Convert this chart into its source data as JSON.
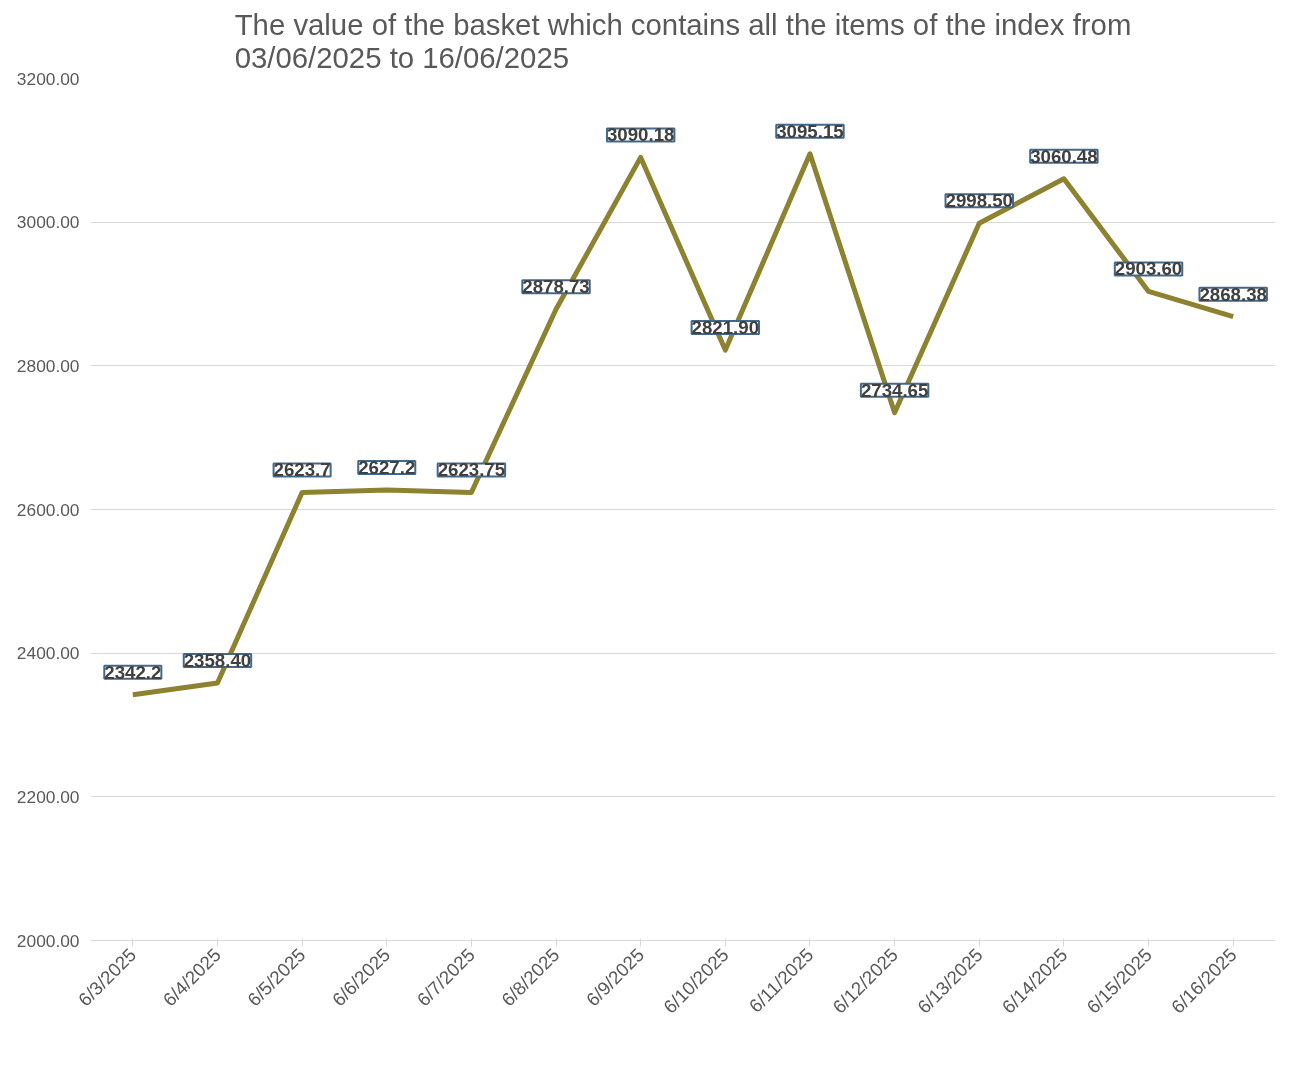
{
  "chart_data": {
    "type": "line",
    "title": "The value of the basket which contains all the items of the index from\n03/06/2025 to 16/06/2025",
    "categories": [
      "6/3/2025",
      "6/4/2025",
      "6/5/2025",
      "6/6/2025",
      "6/7/2025",
      "6/8/2025",
      "6/9/2025",
      "6/10/2025",
      "6/11/2025",
      "6/12/2025",
      "6/13/2025",
      "6/14/2025",
      "6/15/2025",
      "6/16/2025"
    ],
    "series": [
      {
        "color": "#8c8230",
        "values": [
          2342.2,
          2358.4,
          2623.7,
          2627.2,
          2623.75,
          2878.73,
          3090.18,
          2821.9,
          3095.15,
          2734.65,
          2998.5,
          3060.48,
          2903.6,
          2868.38
        ],
        "value_labels": [
          "2342.2",
          "2358.40",
          "2623.7",
          "2627.2",
          "2623.75",
          "2878.73",
          "3090.18",
          "2821.90",
          "3095.15",
          "2734.65",
          "2998.50",
          "3060.48",
          "2903.60",
          "2868.38"
        ]
      }
    ],
    "ylim": [
      2000,
      3200
    ],
    "yticks": [
      {
        "value": 2000,
        "label": "2000.00"
      },
      {
        "value": 2200,
        "label": "2200.00"
      },
      {
        "value": 2400,
        "label": "2400.00"
      },
      {
        "value": 2600,
        "label": "2600.00"
      },
      {
        "value": 2800,
        "label": "2800.00"
      },
      {
        "value": 3000,
        "label": "3000.00"
      },
      {
        "value": 3200,
        "label": "3200.00"
      }
    ],
    "grid": "y",
    "marker": "none",
    "line_style": "solid"
  }
}
